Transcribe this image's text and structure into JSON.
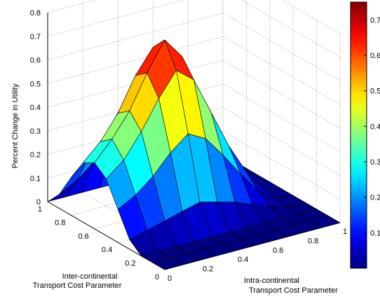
{
  "chart_data": {
    "type": "surface",
    "colormap": "jet",
    "zlabel": "Percent Change in Utility",
    "xlabel_lines": [
      "Inter-continental",
      "Transport Cost Parameter"
    ],
    "ylabel_lines": [
      "Intra-continental",
      "Transport Cost Parameter"
    ],
    "z_ticks": [
      "0",
      "0.1",
      "0.2",
      "0.3",
      "0.4",
      "0.5",
      "0.6",
      "0.7",
      "0.8"
    ],
    "x_ticks": [
      "0",
      "0.2",
      "0.4",
      "0.6",
      "0.8",
      "1"
    ],
    "y_ticks": [
      "0",
      "0.2",
      "0.4",
      "0.6",
      "0.8",
      "1"
    ],
    "colorbar_ticks": [
      "0.1",
      "0.2",
      "0.3",
      "0.4",
      "0.5",
      "0.6",
      "0.7"
    ],
    "zlim": [
      0,
      0.8
    ],
    "color_range": [
      0,
      0.75
    ],
    "grid": true,
    "x": [
      1.0,
      0.9,
      0.8,
      0.7,
      0.6,
      0.5,
      0.4,
      0.3,
      0.2,
      0.1,
      0.0
    ],
    "y": [
      0.0,
      0.1,
      0.2,
      0.3,
      0.4,
      0.5,
      0.6,
      0.7,
      0.8,
      0.9,
      1.0
    ],
    "z": [
      [
        0.0,
        0.0,
        0.0,
        0.0,
        0.0,
        0.0,
        0.0,
        0.0,
        0.0,
        0.0,
        0.0
      ],
      [
        0.06,
        0.1,
        0.16,
        0.22,
        0.26,
        0.22,
        0.16,
        0.09,
        0.04,
        0.01,
        0.0
      ],
      [
        0.16,
        0.22,
        0.3,
        0.42,
        0.5,
        0.42,
        0.3,
        0.18,
        0.08,
        0.02,
        0.0
      ],
      [
        0.25,
        0.32,
        0.42,
        0.56,
        0.66,
        0.58,
        0.42,
        0.26,
        0.12,
        0.03,
        0.0
      ],
      [
        0.28,
        0.36,
        0.46,
        0.6,
        0.72,
        0.63,
        0.46,
        0.28,
        0.13,
        0.03,
        0.0
      ],
      [
        0.24,
        0.3,
        0.4,
        0.52,
        0.62,
        0.56,
        0.4,
        0.24,
        0.11,
        0.02,
        0.0
      ],
      [
        0.14,
        0.18,
        0.24,
        0.32,
        0.38,
        0.34,
        0.25,
        0.15,
        0.06,
        0.01,
        0.0
      ],
      [
        0.04,
        0.06,
        0.08,
        0.1,
        0.12,
        0.1,
        0.08,
        0.05,
        0.02,
        0.0,
        0.0
      ],
      [
        0.0,
        0.0,
        0.0,
        0.0,
        0.0,
        0.0,
        0.0,
        0.0,
        0.0,
        0.0,
        0.0
      ],
      [
        0.0,
        0.0,
        0.0,
        0.0,
        0.0,
        0.0,
        0.0,
        0.0,
        0.0,
        0.0,
        0.0
      ],
      [
        0.0,
        0.0,
        0.0,
        0.0,
        0.0,
        0.0,
        0.0,
        0.0,
        0.0,
        0.0,
        0.0
      ]
    ]
  }
}
